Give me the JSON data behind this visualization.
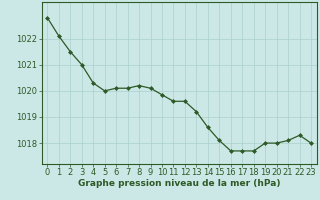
{
  "x": [
    0,
    1,
    2,
    3,
    4,
    5,
    6,
    7,
    8,
    9,
    10,
    11,
    12,
    13,
    14,
    15,
    16,
    17,
    18,
    19,
    20,
    21,
    22,
    23
  ],
  "y": [
    1022.8,
    1022.1,
    1021.5,
    1021.0,
    1020.3,
    1020.0,
    1020.1,
    1020.1,
    1020.2,
    1020.1,
    1019.85,
    1019.6,
    1019.6,
    1019.2,
    1018.6,
    1018.1,
    1017.7,
    1017.7,
    1017.7,
    1018.0,
    1018.0,
    1018.1,
    1018.3,
    1018.0
  ],
  "xlim": [
    -0.5,
    23.5
  ],
  "ylim": [
    1017.2,
    1023.4
  ],
  "yticks": [
    1018,
    1019,
    1020,
    1021,
    1022
  ],
  "xticks": [
    0,
    1,
    2,
    3,
    4,
    5,
    6,
    7,
    8,
    9,
    10,
    11,
    12,
    13,
    14,
    15,
    16,
    17,
    18,
    19,
    20,
    21,
    22,
    23
  ],
  "xlabel": "Graphe pression niveau de la mer (hPa)",
  "line_color": "#2d5a27",
  "marker_color": "#2d5a27",
  "bg_color": "#cce8e6",
  "grid_color": "#aacfcd",
  "axis_color": "#2d5a27",
  "tick_color": "#2d5a27",
  "xlabel_color": "#2d5a27",
  "xlabel_fontsize": 6.5,
  "tick_fontsize": 6.0
}
